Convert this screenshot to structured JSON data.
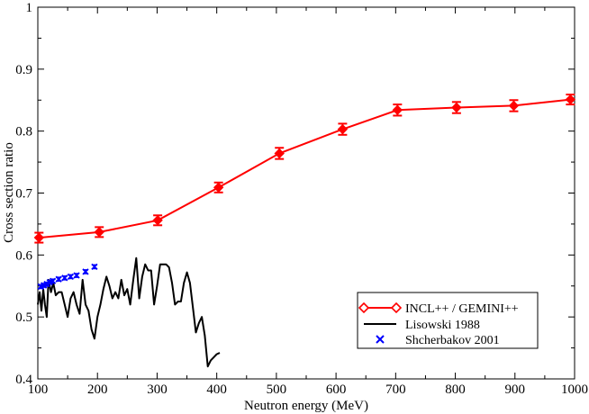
{
  "chart_data": {
    "type": "line",
    "title": "",
    "xlabel": "Neutron energy (MeV)",
    "ylabel": "Cross section ratio",
    "xlim": [
      100,
      1000
    ],
    "ylim": [
      0.4,
      1.0
    ],
    "x_ticks": [
      "100",
      "200",
      "300",
      "400",
      "500",
      "600",
      "700",
      "800",
      "900",
      "1000"
    ],
    "y_ticks": [
      "0.4",
      "0.5",
      "0.6",
      "0.7",
      "0.8",
      "0.9",
      "1"
    ],
    "legend_position": "bottom-right",
    "series": [
      {
        "name": "INCL++ / GEMINI++",
        "style": "line-diamond-errorbar",
        "color": "#ff0000",
        "x": [
          102,
          203,
          301,
          403,
          505,
          611,
          703,
          802,
          898,
          993
        ],
        "y": [
          0.628,
          0.637,
          0.656,
          0.709,
          0.764,
          0.803,
          0.834,
          0.838,
          0.841,
          0.851
        ],
        "err": [
          0.008,
          0.008,
          0.008,
          0.008,
          0.009,
          0.009,
          0.009,
          0.009,
          0.009,
          0.008
        ]
      },
      {
        "name": "Lisowski 1988",
        "style": "line",
        "color": "#000000",
        "x": [
          100,
          103,
          106,
          109,
          112,
          115,
          118,
          122,
          126,
          130,
          135,
          140,
          145,
          150,
          155,
          160,
          165,
          170,
          175,
          180,
          185,
          190,
          195,
          200,
          205,
          210,
          215,
          220,
          225,
          230,
          235,
          240,
          245,
          250,
          255,
          260,
          265,
          270,
          275,
          280,
          285,
          290,
          295,
          300,
          305,
          310,
          315,
          320,
          325,
          330,
          335,
          340,
          345,
          350,
          355,
          360,
          365,
          370,
          375,
          380,
          385,
          390,
          395,
          400,
          405
        ],
        "y": [
          0.52,
          0.54,
          0.51,
          0.545,
          0.52,
          0.5,
          0.56,
          0.54,
          0.555,
          0.535,
          0.54,
          0.54,
          0.52,
          0.5,
          0.53,
          0.54,
          0.52,
          0.505,
          0.56,
          0.52,
          0.51,
          0.48,
          0.465,
          0.5,
          0.52,
          0.545,
          0.565,
          0.55,
          0.53,
          0.54,
          0.53,
          0.56,
          0.535,
          0.545,
          0.52,
          0.56,
          0.595,
          0.53,
          0.565,
          0.585,
          0.575,
          0.575,
          0.52,
          0.55,
          0.585,
          0.585,
          0.585,
          0.58,
          0.555,
          0.52,
          0.525,
          0.525,
          0.555,
          0.572,
          0.555,
          0.515,
          0.475,
          0.49,
          0.5,
          0.47,
          0.42,
          0.43,
          0.435,
          0.44,
          0.442
        ]
      },
      {
        "name": "Shcherbakov 2001",
        "style": "x-marker-errorbar",
        "color": "#0000ff",
        "x": [
          105,
          110,
          115,
          120,
          125,
          135,
          145,
          155,
          165,
          180,
          195
        ],
        "y": [
          0.549,
          0.551,
          0.553,
          0.556,
          0.558,
          0.561,
          0.563,
          0.565,
          0.567,
          0.573,
          0.581
        ],
        "err": [
          0.003,
          0.003,
          0.003,
          0.003,
          0.003,
          0.003,
          0.003,
          0.003,
          0.003,
          0.003,
          0.003
        ]
      }
    ]
  }
}
